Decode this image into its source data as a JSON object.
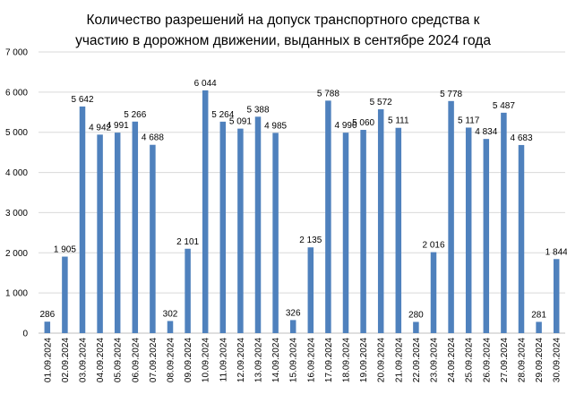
{
  "chart_data": {
    "type": "bar",
    "title_lines": [
      "Количество разрешений на допуск транспортного средства к",
      "участию в дорожном движении, выданных в сентябре 2024 года"
    ],
    "categories": [
      "01.09.2024",
      "02.09.2024",
      "03.09.2024",
      "04.09.2024",
      "05.09.2024",
      "06.09.2024",
      "07.09.2024",
      "08.09.2024",
      "09.09.2024",
      "10.09.2024",
      "11.09.2024",
      "12.09.2024",
      "13.09.2024",
      "14.09.2024",
      "15.09.2024",
      "16.09.2024",
      "17.09.2024",
      "18.09.2024",
      "19.09.2024",
      "20.09.2024",
      "21.09.2024",
      "22.09.2024",
      "23.09.2024",
      "24.09.2024",
      "25.09.2024",
      "26.09.2024",
      "27.09.2024",
      "28.09.2024",
      "29.09.2024",
      "30.09.2024"
    ],
    "values": [
      286,
      1905,
      5642,
      4942,
      4991,
      5266,
      4688,
      302,
      2101,
      6044,
      5264,
      5091,
      5388,
      4985,
      326,
      2135,
      5788,
      4990,
      5060,
      5572,
      5111,
      280,
      2016,
      5778,
      5117,
      4834,
      5487,
      4683,
      281,
      1844
    ],
    "value_labels": [
      "286",
      "1 905",
      "5 642",
      "4 942",
      "4 991",
      "5 266",
      "4 688",
      "302",
      "2 101",
      "6 044",
      "5 264",
      "5 091",
      "5 388",
      "4 985",
      "326",
      "2 135",
      "5 788",
      "4 990",
      "5 060",
      "5 572",
      "5 111",
      "280",
      "2 016",
      "5 778",
      "5 117",
      "4 834",
      "5 487",
      "4 683",
      "281",
      "1 844"
    ],
    "y_ticks": [
      0,
      1000,
      2000,
      3000,
      4000,
      5000,
      6000,
      7000
    ],
    "y_tick_labels": [
      "0",
      "1 000",
      "2 000",
      "3 000",
      "4 000",
      "5 000",
      "6 000",
      "7 000"
    ],
    "ylim": [
      0,
      7000
    ],
    "grid": true,
    "bar_color": "#4f81bd"
  }
}
